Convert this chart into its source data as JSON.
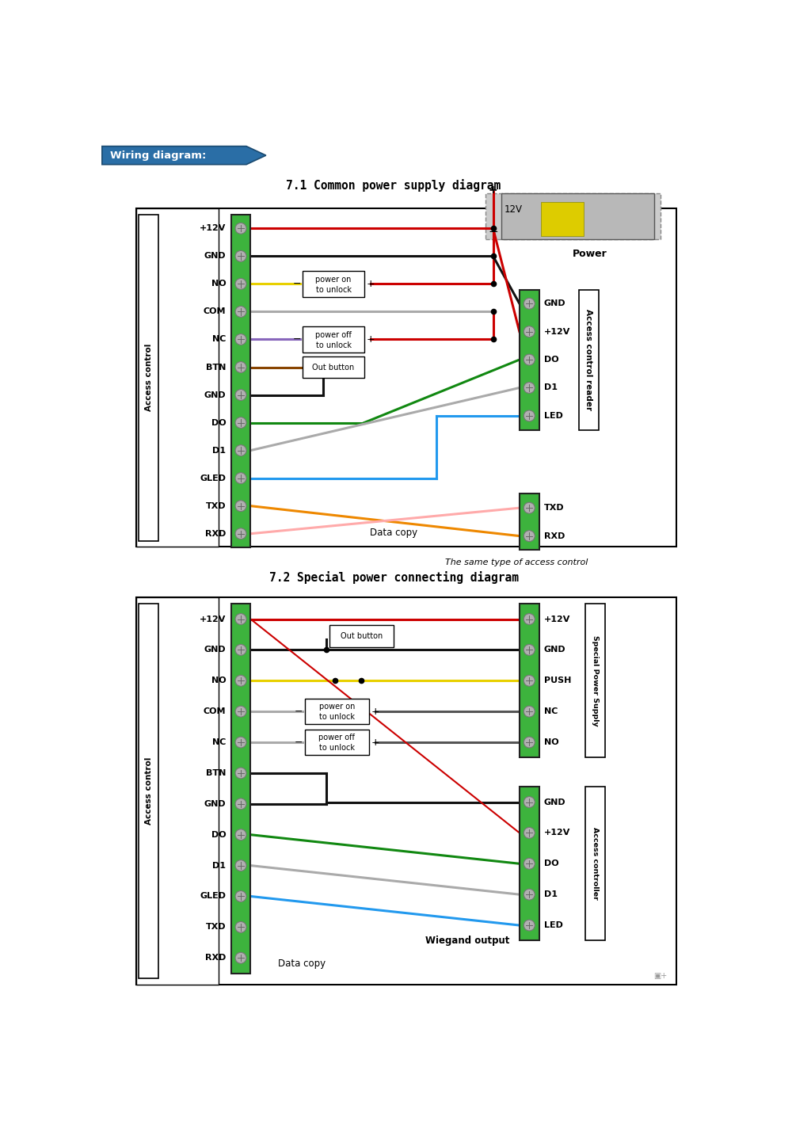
{
  "header_text": "Wiring diagram:",
  "title1": "7.1 Common power supply diagram",
  "title2": "7.2 Special power connecting diagram",
  "d1_left_labels": [
    "+12V",
    "GND",
    "NO",
    "COM",
    "NC",
    "BTN",
    "GND",
    "DO",
    "D1",
    "GLED",
    "TXD",
    "RXD"
  ],
  "d1_right_labels": [
    "GND",
    "+12V",
    "DO",
    "D1",
    "LED"
  ],
  "d1_right_txdrxd_labels": [
    "TXD",
    "RXD"
  ],
  "d1_right_side": "Access control reader",
  "d1_left_side": "Access control",
  "d1_caption": "The same type of access control",
  "d2_left_labels": [
    "+12V",
    "GND",
    "NO",
    "COM",
    "NC",
    "BTN",
    "GND",
    "DO",
    "D1",
    "GLED",
    "TXD",
    "RXD"
  ],
  "d2_right_top_labels": [
    "+12V",
    "GND",
    "PUSH",
    "NC",
    "NO"
  ],
  "d2_right_bot_labels": [
    "GND",
    "+12V",
    "DO",
    "D1",
    "LED"
  ],
  "d2_right_top_side": "Special Power Supply",
  "d2_right_bot_side": "Access controller",
  "d2_left_side": "Access control",
  "d2_caption1": "Wiegand output",
  "d2_caption2": "Data copy",
  "green": "#3db33d",
  "red": "#cc0000",
  "black": "#111111",
  "yellow": "#e8d000",
  "purple": "#8866bb",
  "blue": "#2299ee",
  "orange": "#ee8800",
  "pink": "#ffaaaa",
  "gray_wire": "#aaaaaa",
  "white": "#ffffff"
}
